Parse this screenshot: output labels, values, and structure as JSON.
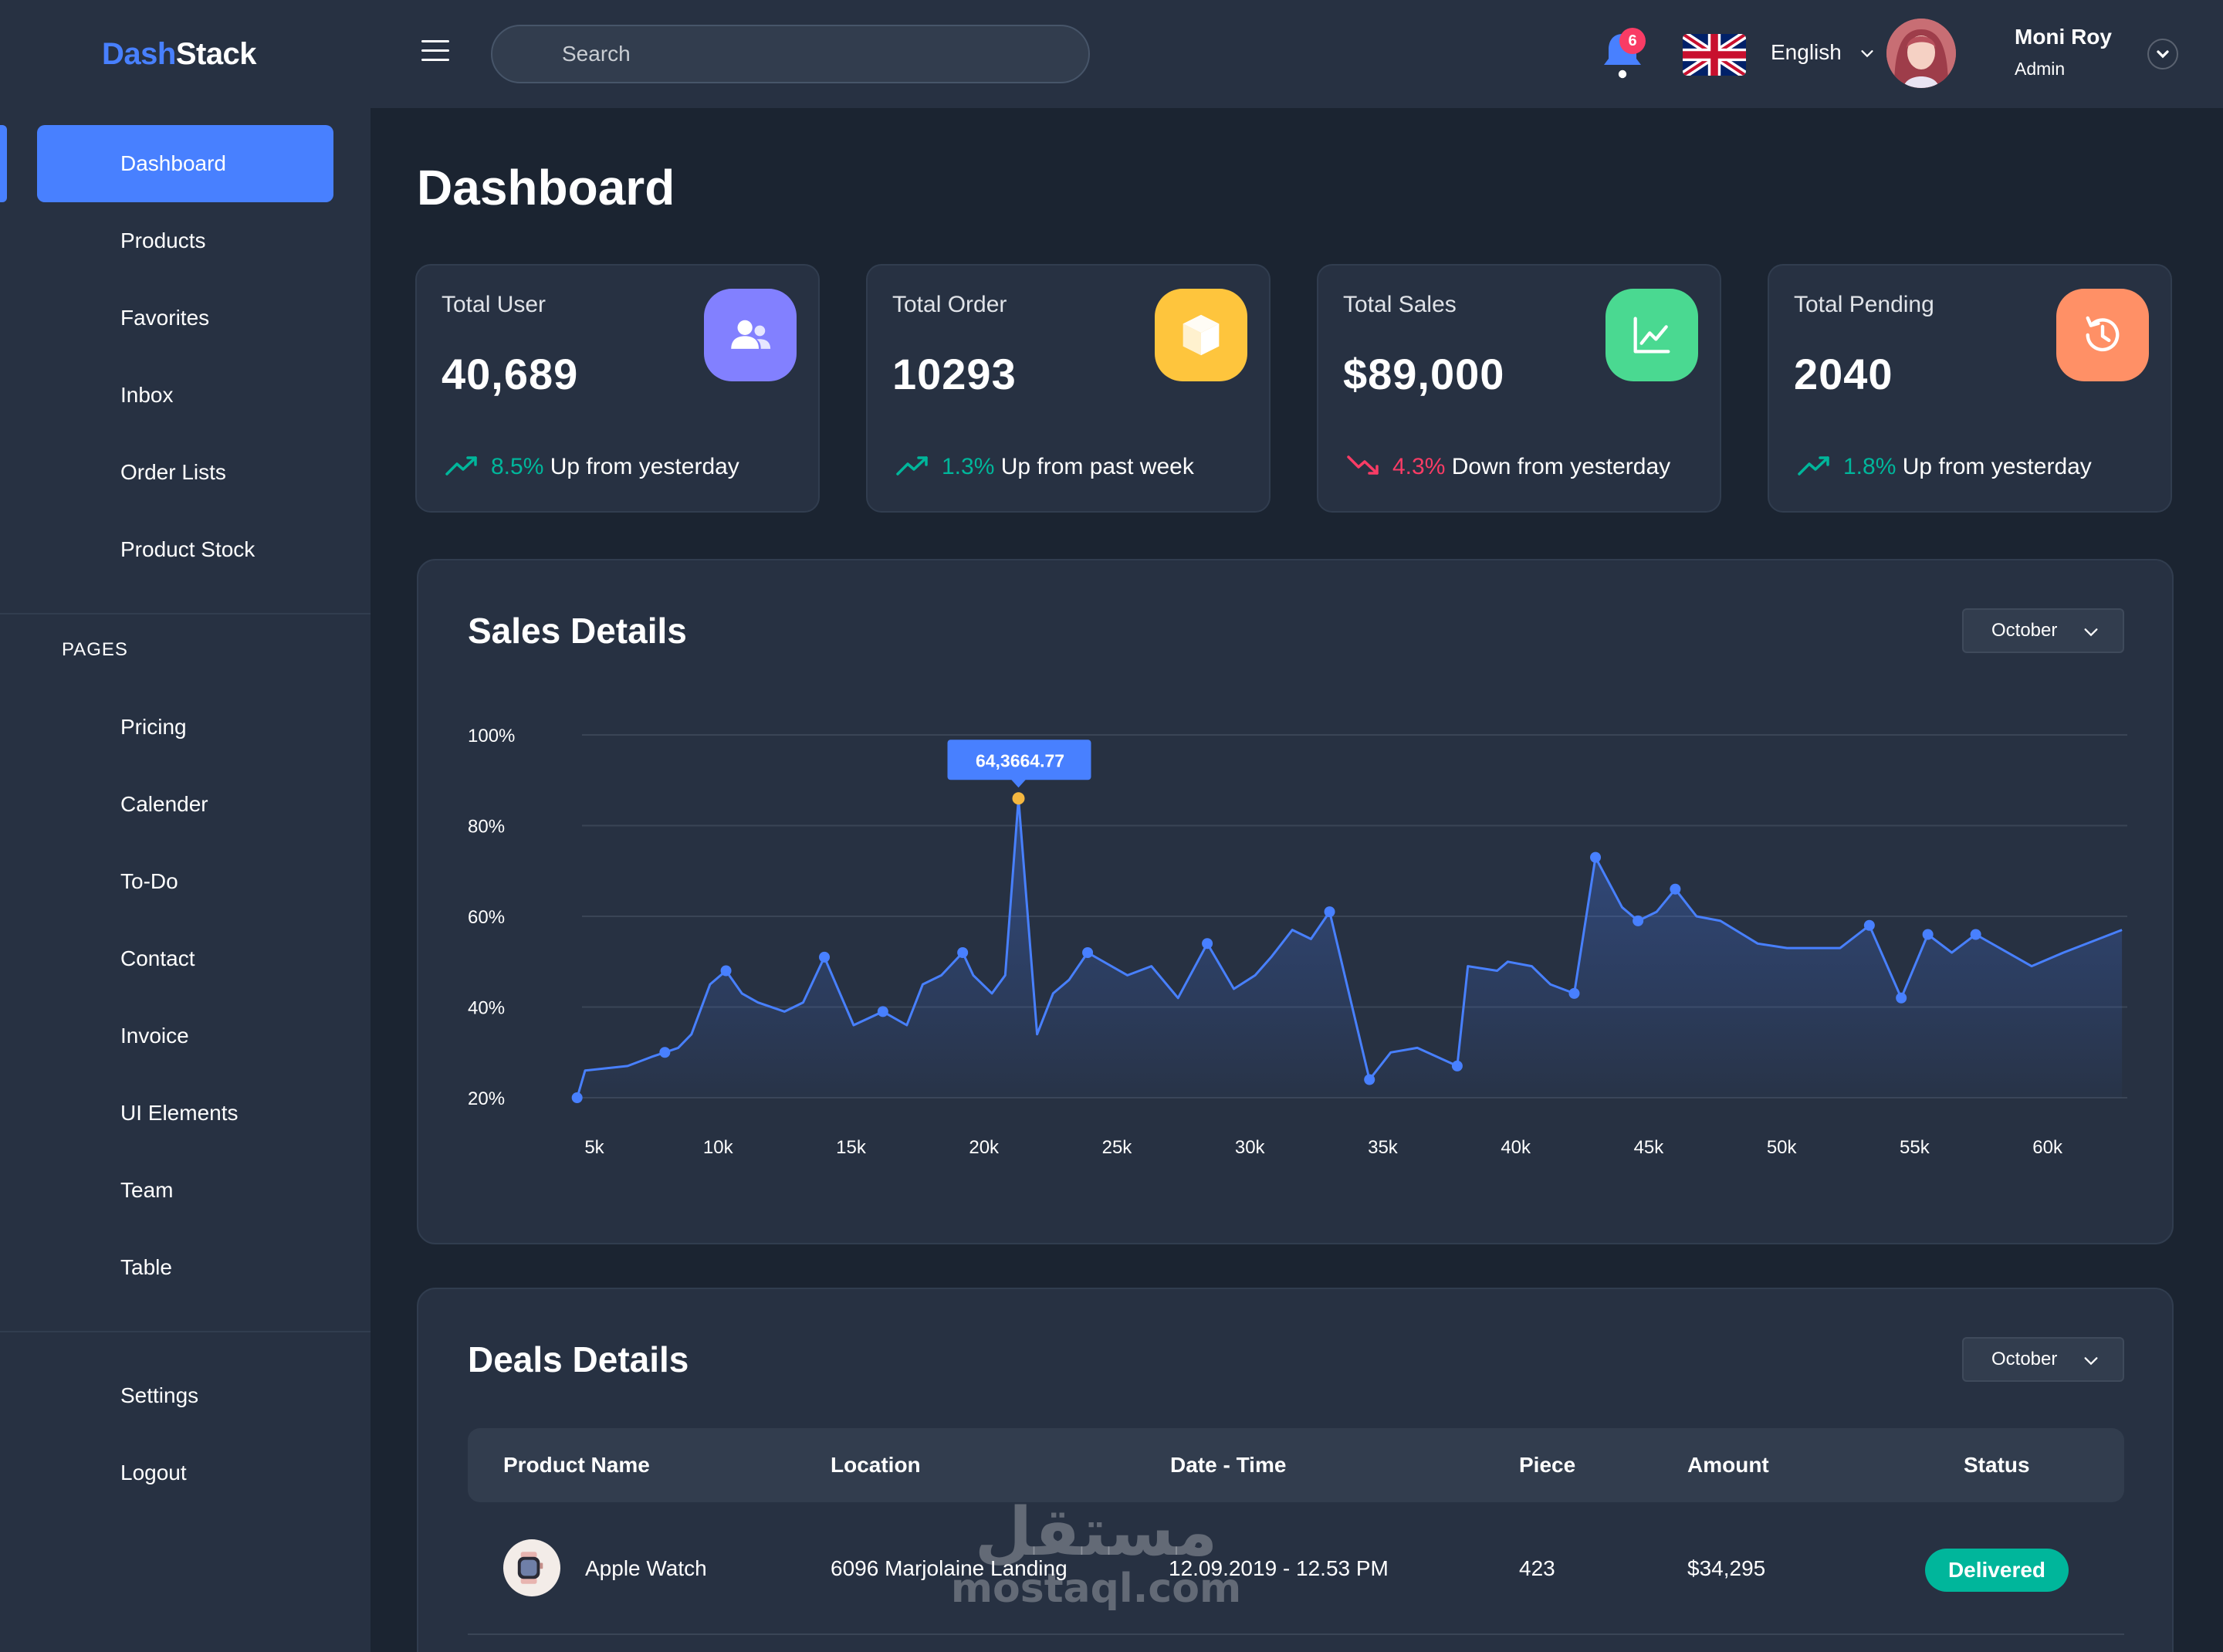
{
  "app": {
    "logo_part1": "Dash",
    "logo_part2": "Stack"
  },
  "sidebar": {
    "main_items": [
      {
        "label": "Dashboard",
        "active": true
      },
      {
        "label": "Products"
      },
      {
        "label": "Favorites"
      },
      {
        "label": "Inbox"
      },
      {
        "label": "Order Lists"
      },
      {
        "label": "Product Stock"
      }
    ],
    "pages_label": "PAGES",
    "page_items": [
      {
        "label": "Pricing"
      },
      {
        "label": "Calender"
      },
      {
        "label": "To-Do"
      },
      {
        "label": "Contact"
      },
      {
        "label": "Invoice"
      },
      {
        "label": "UI Elements"
      },
      {
        "label": "Team"
      },
      {
        "label": "Table"
      }
    ],
    "bottom_items": [
      {
        "label": "Settings"
      },
      {
        "label": "Logout"
      }
    ]
  },
  "header": {
    "search_placeholder": "Search",
    "notification_count": "6",
    "language": "English",
    "user_name": "Moni Roy",
    "user_role": "Admin"
  },
  "page": {
    "title": "Dashboard"
  },
  "stats": [
    {
      "label": "Total User",
      "value": "40,689",
      "change": "8.5%",
      "text": " Up from yesterday",
      "direction": "up",
      "icon": "users-icon",
      "color": "#8280ff"
    },
    {
      "label": "Total Order",
      "value": "10293",
      "change": "1.3%",
      "text": " Up from past week",
      "direction": "up",
      "icon": "box-icon",
      "color": "#fec53d"
    },
    {
      "label": "Total Sales",
      "value": "$89,000",
      "change": "4.3%",
      "text": " Down from yesterday",
      "direction": "down",
      "icon": "line-chart-icon",
      "color": "#4ad991"
    },
    {
      "label": "Total Pending",
      "value": "2040",
      "change": "1.8%",
      "text": " Up from yesterday",
      "direction": "up",
      "icon": "history-icon",
      "color": "#ff9066"
    }
  ],
  "sales": {
    "title": "Sales Details",
    "month": "October"
  },
  "chart_data": {
    "type": "area",
    "xlim": [
      5,
      63
    ],
    "ylim": [
      20,
      100
    ],
    "y_ticks": [
      "20%",
      "40%",
      "60%",
      "80%",
      "100%"
    ],
    "x_ticks": [
      "5k",
      "10k",
      "15k",
      "20k",
      "25k",
      "30k",
      "35k",
      "40k",
      "45k",
      "50k",
      "55k",
      "60k"
    ],
    "x_tick_values": [
      5,
      10,
      15,
      20,
      25,
      30,
      35,
      40,
      45,
      50,
      55,
      60
    ],
    "tooltip": {
      "label": "64,3664.77",
      "x": 21.3,
      "y": 86
    },
    "series": [
      {
        "points": [
          [
            4.7,
            20
          ],
          [
            5.0,
            26
          ],
          [
            6.6,
            27
          ],
          [
            7.5,
            29
          ],
          [
            8.0,
            30
          ],
          [
            8.5,
            31
          ],
          [
            9.0,
            34
          ],
          [
            9.7,
            45
          ],
          [
            10.3,
            48
          ],
          [
            10.9,
            43
          ],
          [
            11.5,
            41
          ],
          [
            12.5,
            39
          ],
          [
            13.2,
            41
          ],
          [
            14.0,
            51
          ],
          [
            15.1,
            36
          ],
          [
            16.2,
            39
          ],
          [
            17.1,
            36
          ],
          [
            17.7,
            45
          ],
          [
            18.4,
            47
          ],
          [
            19.2,
            52
          ],
          [
            19.6,
            47
          ],
          [
            20.3,
            43
          ],
          [
            20.8,
            47
          ],
          [
            21.3,
            86
          ],
          [
            22.0,
            34
          ],
          [
            22.6,
            43
          ],
          [
            23.2,
            46
          ],
          [
            23.9,
            52
          ],
          [
            25.4,
            47
          ],
          [
            26.3,
            49
          ],
          [
            27.3,
            42
          ],
          [
            28.4,
            54
          ],
          [
            29.4,
            44
          ],
          [
            30.2,
            47
          ],
          [
            30.8,
            51
          ],
          [
            31.6,
            57
          ],
          [
            32.3,
            55
          ],
          [
            33.0,
            61
          ],
          [
            34.5,
            24
          ],
          [
            35.3,
            30
          ],
          [
            36.3,
            31
          ],
          [
            37.8,
            27
          ],
          [
            38.2,
            49
          ],
          [
            39.3,
            48
          ],
          [
            39.7,
            50
          ],
          [
            40.6,
            49
          ],
          [
            41.3,
            45
          ],
          [
            42.2,
            43
          ],
          [
            43.0,
            73
          ],
          [
            44.0,
            62
          ],
          [
            44.6,
            59
          ],
          [
            45.3,
            61
          ],
          [
            46.0,
            66
          ],
          [
            46.8,
            60
          ],
          [
            47.7,
            59
          ],
          [
            49.1,
            54
          ],
          [
            50.2,
            53
          ],
          [
            51.1,
            53
          ],
          [
            52.2,
            53
          ],
          [
            53.3,
            58
          ],
          [
            54.5,
            42
          ],
          [
            55.5,
            56
          ],
          [
            56.4,
            52
          ],
          [
            57.3,
            56
          ],
          [
            58.2,
            53
          ],
          [
            59.4,
            49
          ],
          [
            60.6,
            52
          ],
          [
            62.8,
            57
          ]
        ],
        "markers": [
          [
            4.7,
            20
          ],
          [
            8.0,
            30
          ],
          [
            10.3,
            48
          ],
          [
            14.0,
            51
          ],
          [
            16.2,
            39
          ],
          [
            19.2,
            52
          ],
          [
            23.9,
            52
          ],
          [
            28.4,
            54
          ],
          [
            33.0,
            61
          ],
          [
            34.5,
            24
          ],
          [
            37.8,
            27
          ],
          [
            42.2,
            43
          ],
          [
            43.0,
            73
          ],
          [
            44.6,
            59
          ],
          [
            46.0,
            66
          ],
          [
            53.3,
            58
          ],
          [
            54.5,
            42
          ],
          [
            55.5,
            56
          ],
          [
            57.3,
            56
          ]
        ]
      }
    ],
    "colors": {
      "line": "#4880ff",
      "highlight": "#f4b740",
      "grid": "#3a4556"
    }
  },
  "deals": {
    "title": "Deals Details",
    "month": "October",
    "columns": [
      "Product Name",
      "Location",
      "Date - Time",
      "Piece",
      "Amount",
      "Status"
    ],
    "rows": [
      {
        "product": "Apple Watch",
        "location": "6096 Marjolaine Landing",
        "datetime": "12.09.2019 - 12.53 PM",
        "piece": "423",
        "amount": "$34,295",
        "status": "Delivered"
      }
    ]
  },
  "watermark": {
    "arabic": "مستقل",
    "latin": "mostaql.com"
  }
}
